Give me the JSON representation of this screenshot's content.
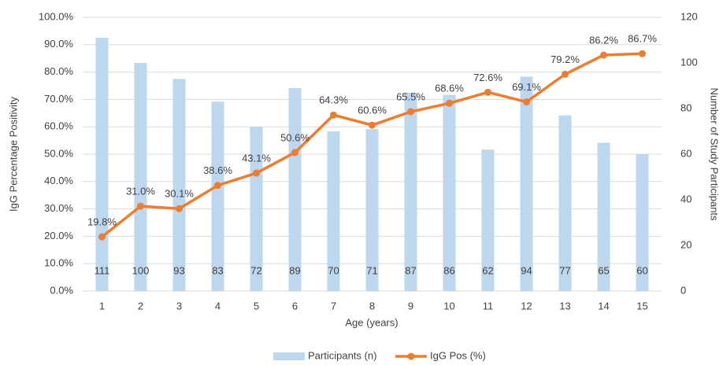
{
  "chart_data": {
    "type": "combo",
    "xlabel": "Age (years)",
    "ylabel": "IgG Percentage Positivity",
    "y2label": "Number of Study Participants",
    "categories": [
      "1",
      "2",
      "3",
      "4",
      "5",
      "6",
      "7",
      "8",
      "9",
      "10",
      "11",
      "12",
      "13",
      "14",
      "15"
    ],
    "ylim": [
      0,
      100
    ],
    "yticks": [
      {
        "value": 0,
        "label": "0.0%"
      },
      {
        "value": 10,
        "label": "10.0%"
      },
      {
        "value": 20,
        "label": "20.0%"
      },
      {
        "value": 30,
        "label": "30.0%"
      },
      {
        "value": 40,
        "label": "40.0%"
      },
      {
        "value": 50,
        "label": "50.0%"
      },
      {
        "value": 60,
        "label": "60.0%"
      },
      {
        "value": 70,
        "label": "70.0%"
      },
      {
        "value": 80,
        "label": "80.0%"
      },
      {
        "value": 90,
        "label": "90.0%"
      },
      {
        "value": 100,
        "label": "100.0%"
      }
    ],
    "y2lim": [
      0,
      120
    ],
    "y2ticks": [
      0,
      20,
      40,
      60,
      80,
      100,
      120
    ],
    "grid": true,
    "legend": "bottom",
    "series": [
      {
        "name": "Participants (n)",
        "type": "bar",
        "axis": "y2",
        "color": "#bdd7ee",
        "values": [
          111,
          100,
          93,
          83,
          72,
          89,
          70,
          71,
          87,
          86,
          62,
          94,
          77,
          65,
          60
        ]
      },
      {
        "name": "IgG Pos (%)",
        "type": "line",
        "axis": "y",
        "color": "#ed7d31",
        "values": [
          19.8,
          31.0,
          30.1,
          38.6,
          43.1,
          50.6,
          64.3,
          60.6,
          65.5,
          68.6,
          72.6,
          69.1,
          79.2,
          86.2,
          86.7
        ],
        "value_labels": [
          "19.8%",
          "31.0%",
          "30.1%",
          "38.6%",
          "43.1%",
          "50.6%",
          "64.3%",
          "60.6%",
          "65.5%",
          "68.6%",
          "72.6%",
          "69.1%",
          "79.2%",
          "86.2%",
          "86.7%"
        ]
      }
    ]
  }
}
